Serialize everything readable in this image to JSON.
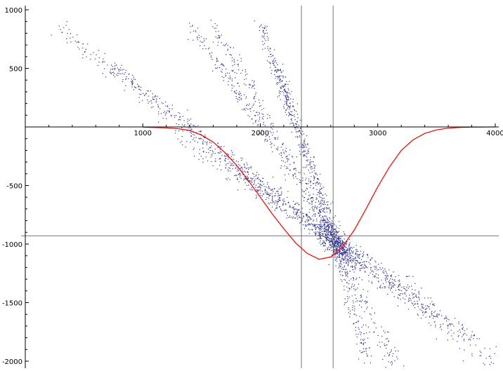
{
  "chart_data": {
    "type": "scatter",
    "title": "",
    "xlabel": "",
    "ylabel": "",
    "xlim": [
      0,
      4000
    ],
    "ylim": [
      -2000,
      1000
    ],
    "x_ticks": [
      1000,
      2000,
      3000,
      4000
    ],
    "x_tick_labels": [
      "1000",
      "2000",
      "3000",
      "4000"
    ],
    "y_ticks": [
      1000,
      500,
      -500,
      -1000,
      -1500,
      -2000
    ],
    "y_tick_labels": [
      "1000",
      "500",
      "-500",
      "-1000",
      "-1500",
      "-2000"
    ],
    "grid": false,
    "reference_lines": {
      "vertical_x": [
        2350,
        2620
      ],
      "horizontal_y": [
        -930
      ]
    },
    "colors": {
      "points": "#2b2f8f",
      "curve": "#ff0000",
      "axes": "#000000",
      "reference": "#777777"
    },
    "curve": {
      "name": "",
      "x": [
        1000,
        1100,
        1200,
        1300,
        1400,
        1500,
        1600,
        1700,
        1800,
        1900,
        2000,
        2100,
        2200,
        2300,
        2400,
        2500,
        2600,
        2700,
        2800,
        2900,
        3000,
        3100,
        3200,
        3300,
        3400,
        3500,
        3600,
        3700,
        3800,
        3900,
        4000
      ],
      "y": [
        -2,
        -5,
        -8,
        -15,
        -30,
        -70,
        -130,
        -220,
        -330,
        -460,
        -600,
        -740,
        -870,
        -990,
        -1080,
        -1130,
        -1110,
        -1020,
        -880,
        -700,
        -510,
        -340,
        -200,
        -110,
        -55,
        -25,
        -10,
        -4,
        -2,
        -1,
        0
      ]
    },
    "point_clusters": [
      {
        "x_start": 250,
        "y_start": 880,
        "x_end": 2650,
        "y_end": -960,
        "n": 210,
        "spread": 30
      },
      {
        "x_start": 400,
        "y_start": 750,
        "x_end": 2700,
        "y_end": -1020,
        "n": 190,
        "spread": 30
      },
      {
        "x_start": 700,
        "y_start": 550,
        "x_end": 2750,
        "y_end": -1060,
        "n": 200,
        "spread": 28
      },
      {
        "x_start": 1400,
        "y_start": 880,
        "x_end": 2620,
        "y_end": -920,
        "n": 260,
        "spread": 25
      },
      {
        "x_start": 1600,
        "y_start": 870,
        "x_end": 2720,
        "y_end": -1100,
        "n": 260,
        "spread": 25
      },
      {
        "x_start": 2000,
        "y_start": 880,
        "x_end": 2650,
        "y_end": -1000,
        "n": 300,
        "spread": 22
      },
      {
        "x_start": 2100,
        "y_start": 600,
        "x_end": 2700,
        "y_end": -1060,
        "n": 240,
        "spread": 25
      },
      {
        "x_start": 1300,
        "y_start": -80,
        "x_end": 2700,
        "y_end": -1050,
        "n": 170,
        "spread": 30
      },
      {
        "x_start": 1700,
        "y_start": -300,
        "x_end": 2650,
        "y_end": -990,
        "n": 150,
        "spread": 30
      },
      {
        "x_start": 2600,
        "y_start": -950,
        "x_end": 3450,
        "y_end": -1550,
        "n": 200,
        "spread": 40
      },
      {
        "x_start": 2650,
        "y_start": -1000,
        "x_end": 3800,
        "y_end": -1820,
        "n": 170,
        "spread": 40
      },
      {
        "x_start": 2600,
        "y_start": -1000,
        "x_end": 3150,
        "y_end": -2000,
        "n": 150,
        "spread": 35
      },
      {
        "x_start": 2620,
        "y_start": -980,
        "x_end": 2900,
        "y_end": -2000,
        "n": 130,
        "spread": 30
      },
      {
        "x_start": 2650,
        "y_start": -1020,
        "x_end": 4000,
        "y_end": -2000,
        "n": 140,
        "spread": 45
      },
      {
        "x_start": 2500,
        "y_start": -850,
        "x_end": 2800,
        "y_end": -1150,
        "n": 350,
        "spread": 45
      }
    ]
  }
}
